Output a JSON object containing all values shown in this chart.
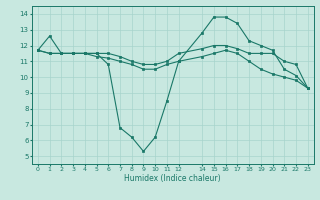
{
  "xlabel": "Humidex (Indice chaleur)",
  "bg_color": "#c8e8e0",
  "line_color": "#1a7868",
  "grid_color": "#a8d4cc",
  "ylim": [
    4.5,
    14.5
  ],
  "xlim": [
    -0.5,
    23.5
  ],
  "yticks": [
    5,
    6,
    7,
    8,
    9,
    10,
    11,
    12,
    13,
    14
  ],
  "xtick_positions": [
    0,
    1,
    2,
    3,
    4,
    5,
    6,
    7,
    8,
    9,
    10,
    11,
    12,
    14,
    15,
    16,
    17,
    18,
    19,
    20,
    21,
    22,
    23
  ],
  "xtick_labels": [
    "0",
    "1",
    "2",
    "3",
    "4",
    "5",
    "6",
    "7",
    "8",
    "9",
    "10",
    "11",
    "12",
    "14",
    "15",
    "16",
    "17",
    "18",
    "19",
    "20",
    "21",
    "22",
    "23"
  ],
  "line1_x": [
    0,
    1,
    2,
    3,
    4,
    5,
    6,
    7,
    8,
    9,
    10,
    11,
    12,
    14,
    15,
    16,
    17,
    18,
    19,
    20,
    21,
    22,
    23
  ],
  "line1_y": [
    11.7,
    12.6,
    11.5,
    11.5,
    11.5,
    11.5,
    10.8,
    6.8,
    6.2,
    5.3,
    6.2,
    8.5,
    11.0,
    12.8,
    13.8,
    13.8,
    13.4,
    12.3,
    12.0,
    11.7,
    10.5,
    10.1,
    9.3
  ],
  "line2_x": [
    0,
    1,
    2,
    3,
    4,
    5,
    6,
    7,
    8,
    9,
    10,
    11,
    12,
    14,
    15,
    16,
    17,
    18,
    19,
    20,
    21,
    22,
    23
  ],
  "line2_y": [
    11.7,
    11.5,
    11.5,
    11.5,
    11.5,
    11.5,
    11.5,
    11.3,
    11.0,
    10.8,
    10.8,
    11.0,
    11.5,
    11.8,
    12.0,
    12.0,
    11.8,
    11.5,
    11.5,
    11.5,
    11.0,
    10.8,
    9.3
  ],
  "line3_x": [
    0,
    1,
    2,
    3,
    4,
    5,
    6,
    7,
    8,
    9,
    10,
    11,
    12,
    14,
    15,
    16,
    17,
    18,
    19,
    20,
    21,
    22,
    23
  ],
  "line3_y": [
    11.7,
    11.5,
    11.5,
    11.5,
    11.5,
    11.3,
    11.2,
    11.0,
    10.8,
    10.5,
    10.5,
    10.8,
    11.0,
    11.3,
    11.5,
    11.7,
    11.5,
    11.0,
    10.5,
    10.2,
    10.0,
    9.8,
    9.3
  ]
}
